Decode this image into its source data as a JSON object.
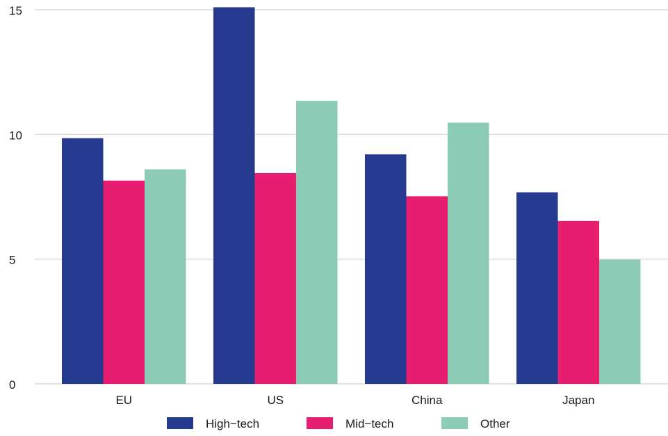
{
  "chart_data": {
    "type": "bar",
    "title": "",
    "xlabel": "",
    "ylabel": "",
    "categories": [
      "EU",
      "US",
      "China",
      "Japan"
    ],
    "series": [
      {
        "name": "High−tech",
        "color": "#253a8e",
        "values": [
          9.85,
          15.1,
          9.2,
          7.68
        ]
      },
      {
        "name": "Mid−tech",
        "color": "#e71d70",
        "values": [
          8.15,
          8.45,
          7.52,
          6.53
        ]
      },
      {
        "name": "Other",
        "color": "#8ccbb6",
        "values": [
          8.6,
          11.35,
          10.47,
          4.98
        ]
      }
    ],
    "ylim": [
      0,
      15
    ],
    "yticks": [
      "0",
      "5",
      "10",
      "15"
    ],
    "grid": true,
    "legend_position": "bottom"
  }
}
